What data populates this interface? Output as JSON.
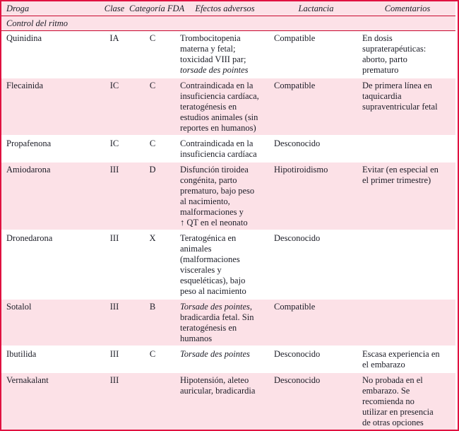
{
  "colors": {
    "border": "#e01140",
    "rule": "#c9082f",
    "row_pink": "#fce1e7",
    "row_white": "#ffffff",
    "text": "#1c1d27"
  },
  "table": {
    "headers": [
      {
        "key": "droga",
        "label": "Droga"
      },
      {
        "key": "clase",
        "label": "Clase"
      },
      {
        "key": "fda",
        "label": "Categoría FDA"
      },
      {
        "key": "efectos",
        "label": "Efectos adversos"
      },
      {
        "key": "lactancia",
        "label": "Lactancia"
      },
      {
        "key": "comentarios",
        "label": "Comentarios"
      }
    ],
    "section": "Control del ritmo",
    "rows": [
      {
        "droga": "Quinidina",
        "clase": "IA",
        "fda": "C",
        "efectos": [
          {
            "text": "Trombocitopenia\nmaterna y fetal;\ntoxicidad VIII par;\n"
          },
          {
            "text": "torsade des pointes",
            "italic": true
          }
        ],
        "lactancia": "Compatible",
        "comentarios": "En dosis\nsupraterapéuticas:\naborto, parto\nprematuro"
      },
      {
        "droga": "Flecainida",
        "clase": "IC",
        "fda": "C",
        "efectos": [
          {
            "text": "Contraindicada en la\ninsuficiencia cardíaca,\nteratogénesis en\nestudios animales (sin\nreportes en humanos)"
          }
        ],
        "lactancia": "Compatible",
        "comentarios": "De primera línea en\ntaquicardia\nsupraventricular fetal"
      },
      {
        "droga": "Propafenona",
        "clase": "IC",
        "fda": "C",
        "efectos": [
          {
            "text": "Contraindicada en la\ninsuficiencia cardíaca"
          }
        ],
        "lactancia": "Desconocido",
        "comentarios": ""
      },
      {
        "droga": "Amiodarona",
        "clase": "III",
        "fda": "D",
        "efectos": [
          {
            "text": "Disfunción tiroidea\ncongénita, parto\nprematuro, bajo peso\nal nacimiento,\nmalformaciones y\n↑ QT en el neonato"
          }
        ],
        "lactancia": "Hipotiroidismo",
        "comentarios": "Evitar (en especial en\nel primer trimestre)"
      },
      {
        "droga": "Dronedarona",
        "clase": "III",
        "fda": "X",
        "efectos": [
          {
            "text": "Teratogénica en\nanimales\n(malformaciones\nviscerales y\nesqueléticas), bajo\npeso al nacimiento"
          }
        ],
        "lactancia": "Desconocido",
        "comentarios": ""
      },
      {
        "droga": "Sotalol",
        "clase": "III",
        "fda": "B",
        "efectos": [
          {
            "text": "Torsade des pointes",
            "italic": true
          },
          {
            "text": ",\nbradicardia fetal. Sin\nteratogénesis en\nhumanos"
          }
        ],
        "lactancia": "Compatible",
        "comentarios": ""
      },
      {
        "droga": "Ibutilida",
        "clase": "III",
        "fda": "C",
        "efectos": [
          {
            "text": "Torsade des pointes",
            "italic": true
          }
        ],
        "lactancia": "Desconocido",
        "comentarios": "Escasa experiencia en\nel embarazo"
      },
      {
        "droga": "Vernakalant",
        "clase": "III",
        "fda": "",
        "efectos": [
          {
            "text": "Hipotensión, aleteo\nauricular, bradicardia"
          }
        ],
        "lactancia": "Desconocido",
        "comentarios": "No probada en el\nembarazo. Se\nrecomienda no\nutilizar en presencia\nde otras opciones"
      }
    ]
  }
}
